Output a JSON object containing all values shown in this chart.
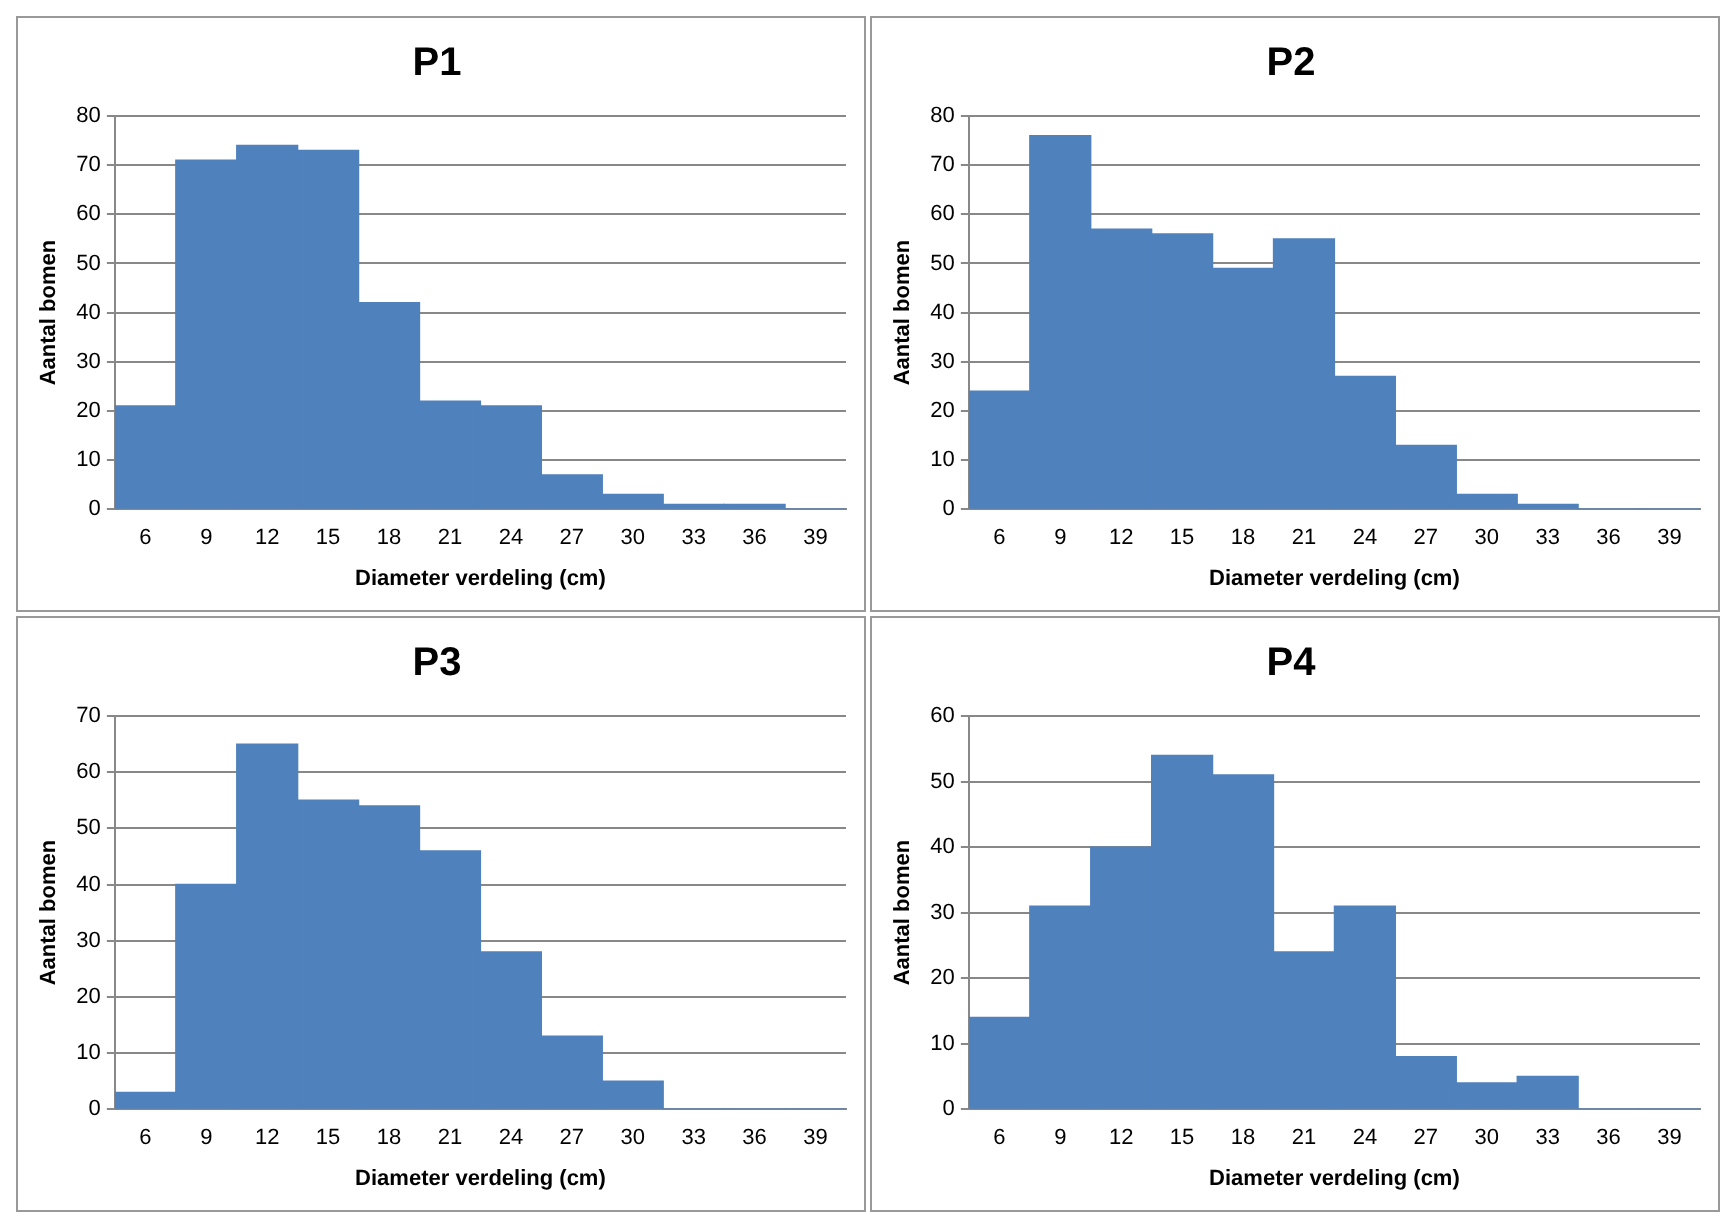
{
  "chart_data": [
    {
      "type": "bar",
      "title": "P1",
      "xlabel": "Diameter verdeling (cm)",
      "ylabel": "Aantal bomen",
      "categories": [
        "6",
        "9",
        "12",
        "15",
        "18",
        "21",
        "24",
        "27",
        "30",
        "33",
        "36",
        "39"
      ],
      "color": "#4f81bd",
      "values": [
        21,
        71,
        74,
        73,
        42,
        22,
        21,
        7,
        3,
        1,
        1,
        0
      ],
      "ylim": [
        0,
        80
      ],
      "yticks": [
        0,
        10,
        20,
        30,
        40,
        50,
        60,
        70,
        80
      ],
      "grid": "y",
      "legend": false
    },
    {
      "type": "bar",
      "title": "P2",
      "xlabel": "Diameter verdeling (cm)",
      "ylabel": "Aantal bomen",
      "categories": [
        "6",
        "9",
        "12",
        "15",
        "18",
        "21",
        "24",
        "27",
        "30",
        "33",
        "36",
        "39"
      ],
      "color": "#4f81bd",
      "values": [
        24,
        76,
        57,
        56,
        49,
        55,
        27,
        13,
        3,
        1,
        0,
        0
      ],
      "ylim": [
        0,
        80
      ],
      "yticks": [
        0,
        10,
        20,
        30,
        40,
        50,
        60,
        70,
        80
      ],
      "grid": "y",
      "legend": false
    },
    {
      "type": "bar",
      "title": "P3",
      "xlabel": "Diameter verdeling (cm)",
      "ylabel": "Aantal bomen",
      "categories": [
        "6",
        "9",
        "12",
        "15",
        "18",
        "21",
        "24",
        "27",
        "30",
        "33",
        "36",
        "39"
      ],
      "color": "#4f81bd",
      "values": [
        3,
        40,
        65,
        55,
        54,
        46,
        28,
        13,
        5,
        0,
        0,
        0
      ],
      "ylim": [
        0,
        70
      ],
      "yticks": [
        0,
        10,
        20,
        30,
        40,
        50,
        60,
        70
      ],
      "grid": "y",
      "legend": false
    },
    {
      "type": "bar",
      "title": "P4",
      "xlabel": "Diameter verdeling (cm)",
      "ylabel": "Aantal bomen",
      "categories": [
        "6",
        "9",
        "12",
        "15",
        "18",
        "21",
        "24",
        "27",
        "30",
        "33",
        "36",
        "39"
      ],
      "color": "#4f81bd",
      "values": [
        14,
        31,
        40,
        54,
        51,
        24,
        31,
        8,
        4,
        5,
        0,
        0
      ],
      "ylim": [
        0,
        60
      ],
      "yticks": [
        0,
        10,
        20,
        30,
        40,
        50,
        60
      ],
      "grid": "y",
      "legend": false
    }
  ]
}
